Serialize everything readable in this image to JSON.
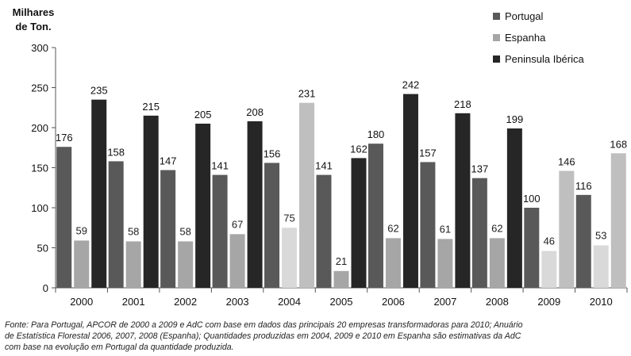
{
  "chart_data": {
    "type": "bar",
    "ylabel": [
      "Milhares",
      "de Ton."
    ],
    "ylim": [
      0,
      300
    ],
    "yticks": [
      0,
      50,
      100,
      150,
      200,
      250,
      300
    ],
    "grid": false,
    "legend_position": "top-right",
    "categories": [
      "2000",
      "2001",
      "2002",
      "2003",
      "2004",
      "2005",
      "2006",
      "2007",
      "2008",
      "2009",
      "2010"
    ],
    "series": [
      {
        "name": "Portugal",
        "color": "#595959",
        "values": [
          176,
          158,
          147,
          141,
          156,
          141,
          180,
          157,
          137,
          100,
          116
        ]
      },
      {
        "name": "Espanha",
        "color": "#a6a6a6",
        "estimated_color": "#d9d9d9",
        "values": [
          59,
          58,
          58,
          67,
          75,
          21,
          62,
          61,
          62,
          46,
          53
        ]
      },
      {
        "name": "Peninsula Ibérica",
        "color": "#262626",
        "estimated_color": "#bfbfbf",
        "values": [
          235,
          215,
          205,
          208,
          231,
          162,
          242,
          218,
          199,
          146,
          168
        ]
      }
    ],
    "estimated_categories": [
      "2004",
      "2009",
      "2010"
    ]
  },
  "source_lines": [
    "Fonte: Para Portugal, APCOR de 2000 a 2009 e AdC com base em dados das principais 20 empresas transformadoras para 2010; Anuário",
    "de Estatística Florestal 2006, 2007, 2008 (Espanha); Quantidades produzidas em 2004, 2009 e 2010 em Espanha são estimativas  da AdC",
    "com base na evolução em Portugal da quantidade produzida."
  ]
}
